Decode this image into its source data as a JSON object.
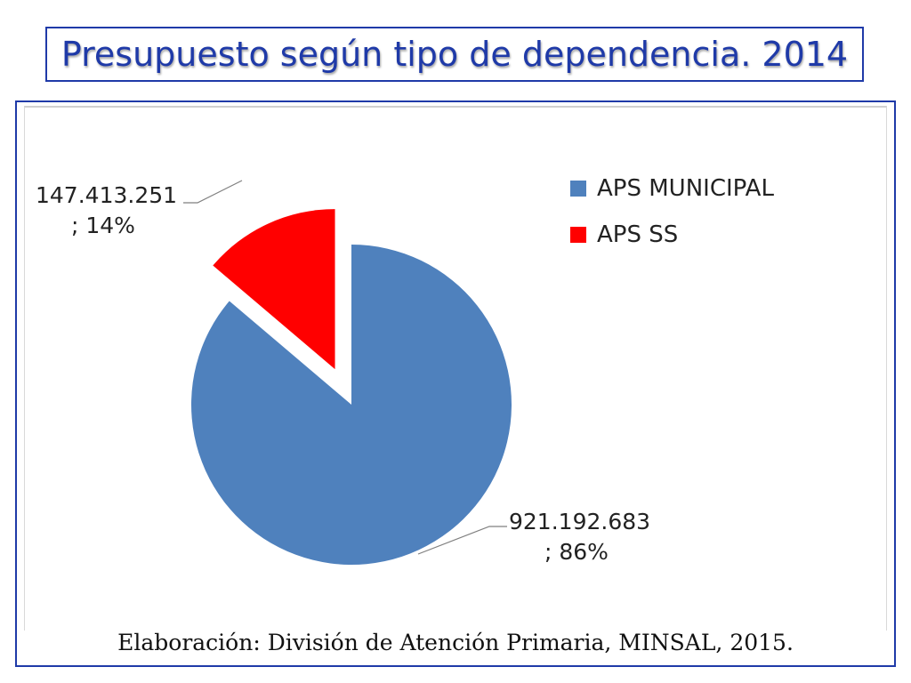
{
  "title": "Presupuesto según tipo de dependencia. 2014",
  "source": "Elaboración: División de Atención Primaria, MINSAL, 2015.",
  "chart_data": {
    "type": "pie",
    "title": "",
    "slices": [
      {
        "name": "APS MUNICIPAL",
        "value": 921192683,
        "percent": 86,
        "value_label": "921.192.683",
        "percent_label": "; 86%",
        "color": "#4f81bd",
        "exploded": false
      },
      {
        "name": "APS SS",
        "value": 147413251,
        "percent": 14,
        "value_label": "147.413.251",
        "percent_label": "; 14%",
        "color": "#ff0000",
        "exploded": true
      }
    ],
    "legend": {
      "placement": "right"
    }
  }
}
